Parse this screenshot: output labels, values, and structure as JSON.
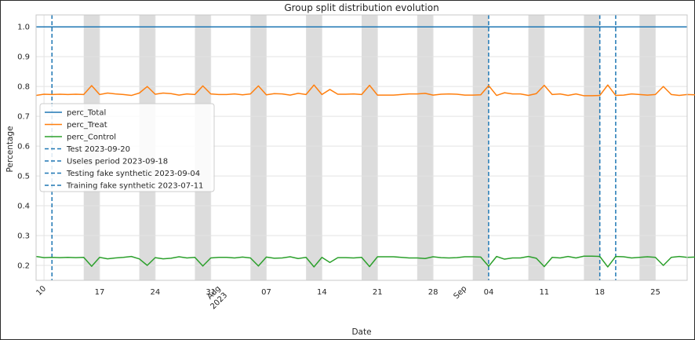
{
  "chart_data": {
    "type": "line",
    "title": "Group split distribution evolution",
    "xlabel": "Date",
    "ylabel": "Percentage",
    "xlim": [
      "2023-07-09",
      "2023-09-29"
    ],
    "ylim": [
      0.15,
      1.04
    ],
    "yticks": [
      0.2,
      0.3,
      0.4,
      0.5,
      0.6,
      0.7,
      0.8,
      0.9,
      1.0
    ],
    "ytick_labels": [
      "0.2",
      "0.3",
      "0.4",
      "0.5",
      "0.6",
      "0.7",
      "0.8",
      "0.9",
      "1.0"
    ],
    "xticks": [
      {
        "date": "2023-07-10",
        "label": "10"
      },
      {
        "date": "2023-07-17",
        "label": "17"
      },
      {
        "date": "2023-07-24",
        "label": "24"
      },
      {
        "date": "2023-07-31",
        "label": "31"
      },
      {
        "date": "2023-08-01",
        "label": "Aug\n2023"
      },
      {
        "date": "2023-08-07",
        "label": "07"
      },
      {
        "date": "2023-08-14",
        "label": "14"
      },
      {
        "date": "2023-08-21",
        "label": "21"
      },
      {
        "date": "2023-08-28",
        "label": "28"
      },
      {
        "date": "2023-09-01",
        "label": "Sep"
      },
      {
        "date": "2023-09-04",
        "label": "04"
      },
      {
        "date": "2023-09-11",
        "label": "11"
      },
      {
        "date": "2023-09-18",
        "label": "18"
      },
      {
        "date": "2023-09-25",
        "label": "25"
      }
    ],
    "grid": true,
    "legend_position": "center-left",
    "start_date": "2023-07-09",
    "series": [
      {
        "name": "perc_Total",
        "color": "#1f77b4",
        "style": "solid",
        "constant": 1.0
      },
      {
        "name": "perc_Treat",
        "color": "#ff7f0e",
        "style": "solid",
        "values": [
          0.77,
          0.774,
          0.773,
          0.774,
          0.773,
          0.774,
          0.773,
          0.803,
          0.773,
          0.778,
          0.775,
          0.773,
          0.77,
          0.778,
          0.8,
          0.774,
          0.778,
          0.776,
          0.771,
          0.775,
          0.773,
          0.802,
          0.775,
          0.773,
          0.773,
          0.775,
          0.772,
          0.775,
          0.802,
          0.772,
          0.776,
          0.775,
          0.771,
          0.777,
          0.773,
          0.805,
          0.773,
          0.79,
          0.774,
          0.774,
          0.775,
          0.773,
          0.804,
          0.771,
          0.771,
          0.771,
          0.773,
          0.775,
          0.775,
          0.777,
          0.771,
          0.774,
          0.775,
          0.774,
          0.771,
          0.771,
          0.772,
          0.803,
          0.77,
          0.779,
          0.775,
          0.775,
          0.77,
          0.776,
          0.804,
          0.773,
          0.775,
          0.77,
          0.775,
          0.769,
          0.769,
          0.77,
          0.805,
          0.77,
          0.771,
          0.775,
          0.773,
          0.771,
          0.773,
          0.8,
          0.773,
          0.77,
          0.773,
          0.772
        ]
      },
      {
        "name": "perc_Control",
        "color": "#2ca02c",
        "style": "solid",
        "values": [
          0.23,
          0.226,
          0.227,
          0.226,
          0.227,
          0.226,
          0.227,
          0.197,
          0.227,
          0.222,
          0.225,
          0.227,
          0.23,
          0.222,
          0.2,
          0.226,
          0.222,
          0.224,
          0.229,
          0.225,
          0.227,
          0.198,
          0.225,
          0.227,
          0.227,
          0.225,
          0.228,
          0.225,
          0.198,
          0.228,
          0.224,
          0.225,
          0.229,
          0.223,
          0.227,
          0.195,
          0.227,
          0.21,
          0.226,
          0.226,
          0.225,
          0.227,
          0.196,
          0.229,
          0.229,
          0.229,
          0.227,
          0.225,
          0.225,
          0.223,
          0.229,
          0.226,
          0.225,
          0.226,
          0.229,
          0.229,
          0.228,
          0.197,
          0.23,
          0.221,
          0.225,
          0.225,
          0.23,
          0.224,
          0.196,
          0.227,
          0.225,
          0.23,
          0.225,
          0.231,
          0.231,
          0.23,
          0.195,
          0.23,
          0.229,
          0.225,
          0.227,
          0.229,
          0.227,
          0.2,
          0.227,
          0.23,
          0.227,
          0.228
        ]
      },
      {
        "name": "Test 2023-09-20",
        "color": "#1f77b4",
        "style": "dashed",
        "vline": "2023-09-20"
      },
      {
        "name": "Useles period 2023-09-18",
        "color": "#1f77b4",
        "style": "dashed",
        "vline": "2023-09-18"
      },
      {
        "name": "Testing fake synthetic 2023-09-04",
        "color": "#1f77b4",
        "style": "dashed",
        "vline": "2023-09-04"
      },
      {
        "name": "Training fake synthetic 2023-07-11",
        "color": "#1f77b4",
        "style": "dashed",
        "vline": "2023-07-11"
      }
    ],
    "weekend_bands": [
      [
        "2023-07-15",
        "2023-07-17"
      ],
      [
        "2023-07-22",
        "2023-07-24"
      ],
      [
        "2023-07-29",
        "2023-07-31"
      ],
      [
        "2023-08-05",
        "2023-08-07"
      ],
      [
        "2023-08-12",
        "2023-08-14"
      ],
      [
        "2023-08-19",
        "2023-08-21"
      ],
      [
        "2023-08-26",
        "2023-08-28"
      ],
      [
        "2023-09-02",
        "2023-09-04"
      ],
      [
        "2023-09-09",
        "2023-09-11"
      ],
      [
        "2023-09-16",
        "2023-09-18"
      ],
      [
        "2023-09-23",
        "2023-09-25"
      ]
    ],
    "band_color": "#d3d3d3"
  }
}
